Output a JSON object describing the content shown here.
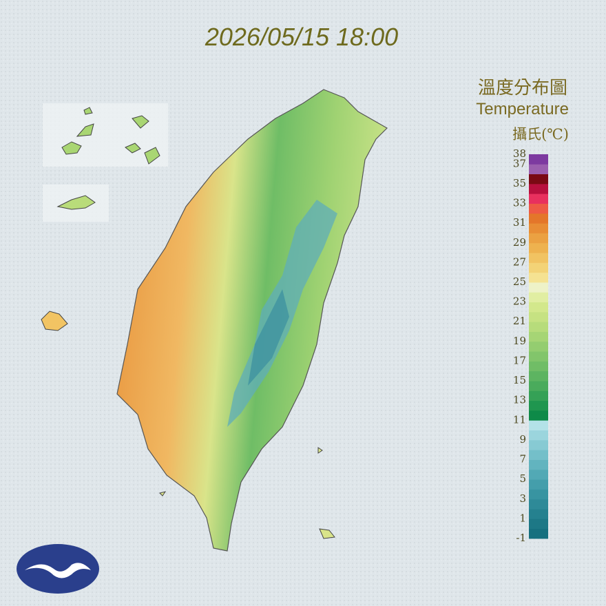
{
  "header": {
    "timestamp": "2026/05/15 18:00"
  },
  "legend": {
    "title": "溫度分布圖",
    "subtitle": "Temperature",
    "unit": "攝氏(℃)",
    "labels": [
      38,
      37,
      35,
      33,
      31,
      29,
      27,
      25,
      23,
      21,
      19,
      17,
      15,
      13,
      11,
      9,
      7,
      5,
      3,
      1,
      -1
    ],
    "colors": [
      "#16707f",
      "#1d7886",
      "#25818f",
      "#2e8a98",
      "#3894a1",
      "#449eab",
      "#52a9b5",
      "#62b4bf",
      "#74bfc9",
      "#87cad3",
      "#9bd5dd",
      "#b3e2e8",
      "#0e8a48",
      "#1f964f",
      "#35a156",
      "#4aab5c",
      "#5db461",
      "#70bd66",
      "#82c56b",
      "#94cd70",
      "#a6d575",
      "#b7dc7b",
      "#c6e282",
      "#d3e88c",
      "#e1eea2",
      "#eef2c8",
      "#f5e292",
      "#f3d377",
      "#f1c362",
      "#eeb24f",
      "#eba142",
      "#e88d35",
      "#e4762a",
      "#ee5a45",
      "#e8305e",
      "#b8103e",
      "#7a0a14",
      "#9b5fae",
      "#7d3aa0"
    ]
  }
}
